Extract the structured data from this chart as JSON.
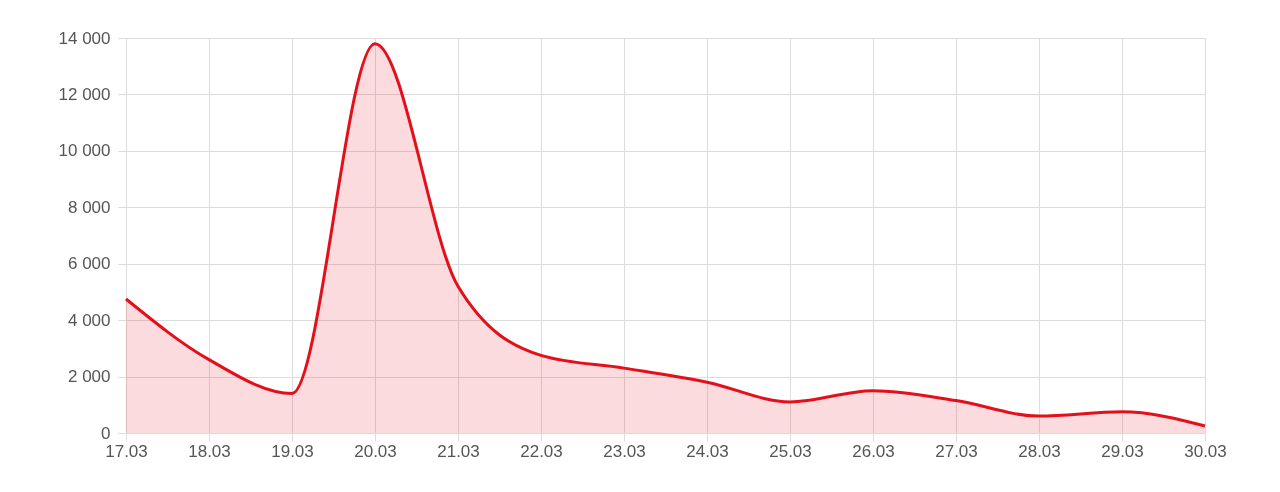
{
  "chart_data": {
    "type": "area",
    "categories": [
      "17.03",
      "18.03",
      "19.03",
      "20.03",
      "21.03",
      "22.03",
      "23.03",
      "24.03",
      "25.03",
      "26.03",
      "27.03",
      "28.03",
      "29.03",
      "30.03"
    ],
    "series": [
      {
        "color": "#e3101b",
        "values": [
          4750,
          2600,
          1400,
          13800,
          5200,
          2750,
          2300,
          1800,
          1100,
          1500,
          1150,
          600,
          750,
          250
        ]
      }
    ],
    "ylim": [
      0,
      14000
    ],
    "yticks": [
      0,
      {
        "value": 2000,
        "label": "2 000"
      },
      {
        "value": 4000,
        "label": "4 000"
      },
      {
        "value": 6000,
        "label": "6 000"
      },
      {
        "value": 8000,
        "label": "8 000"
      },
      {
        "value": 10000,
        "label": "10 000"
      },
      {
        "value": 12000,
        "label": "12 000"
      },
      {
        "value": 14000,
        "label": "14 000"
      }
    ],
    "grid": true
  }
}
